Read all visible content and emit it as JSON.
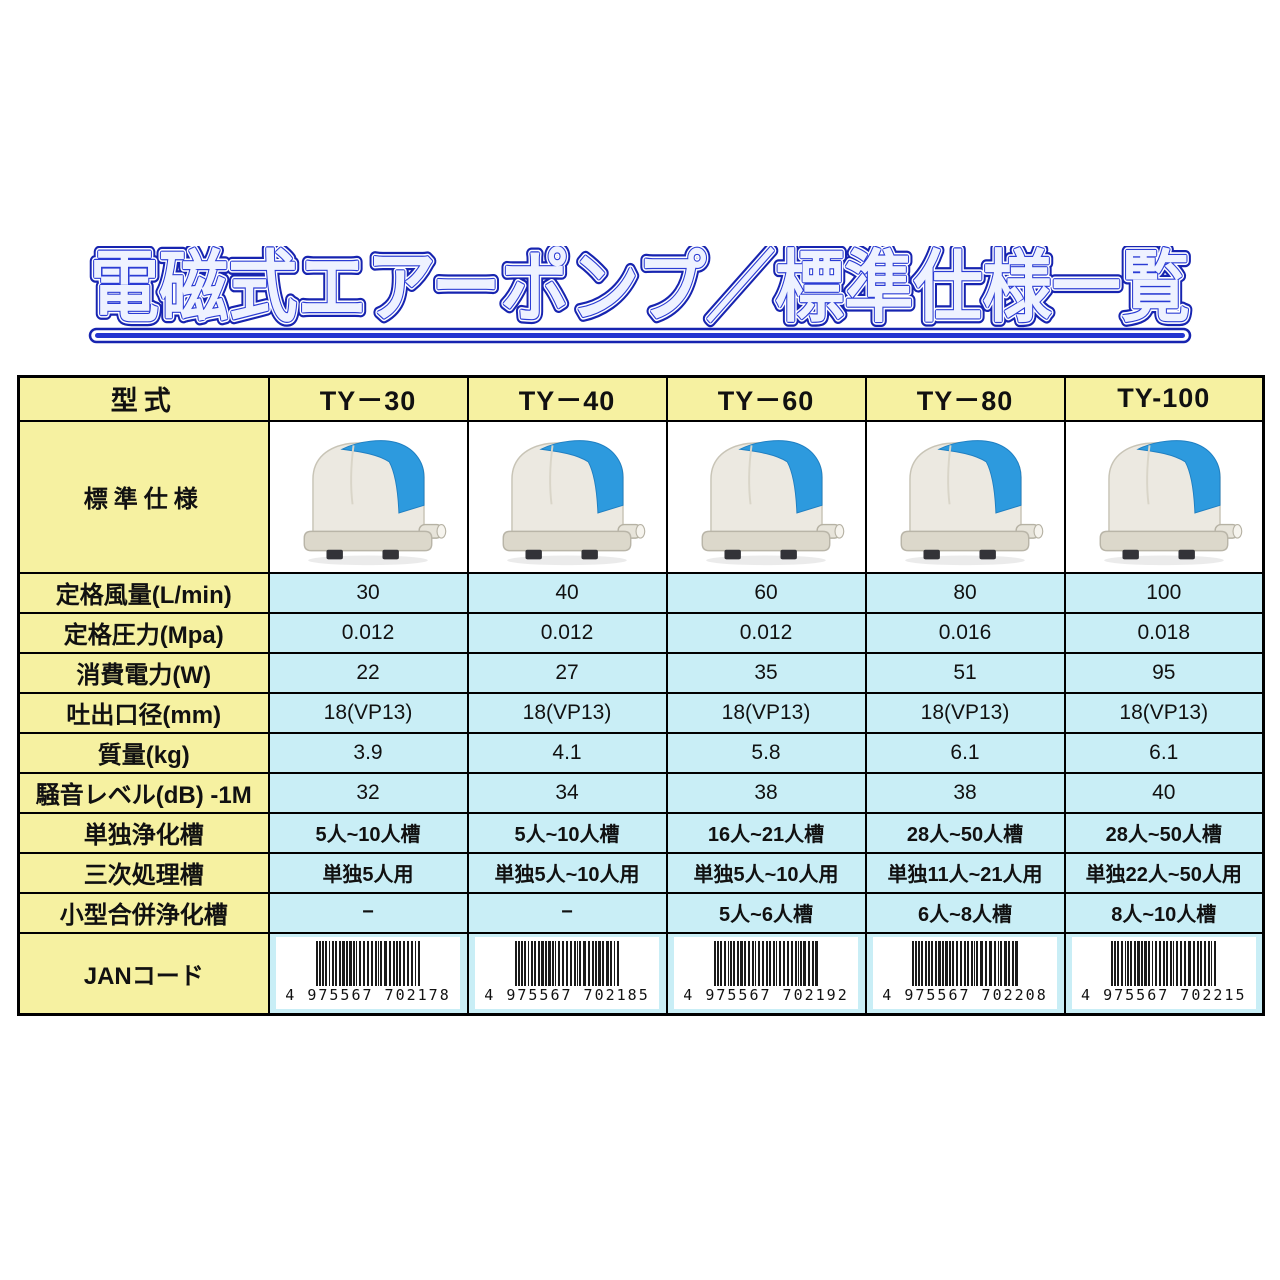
{
  "title": "電磁式エアーポンプ／標準仕様一覧",
  "table": {
    "header": {
      "model_label": "型式",
      "models": [
        "TY－30",
        "TY－40",
        "TY－60",
        "TY－80",
        "TY-100"
      ]
    },
    "image_row_label": "標準仕様",
    "spec_rows": [
      {
        "label": "定格風量(L/min)",
        "values": [
          "30",
          "40",
          "60",
          "80",
          "100"
        ]
      },
      {
        "label": "定格圧力(Mpa)",
        "values": [
          "0.012",
          "0.012",
          "0.012",
          "0.016",
          "0.018"
        ]
      },
      {
        "label": "消費電力(W)",
        "values": [
          "22",
          "27",
          "35",
          "51",
          "95"
        ]
      },
      {
        "label": "吐出口径(mm)",
        "values": [
          "18(VP13)",
          "18(VP13)",
          "18(VP13)",
          "18(VP13)",
          "18(VP13)"
        ]
      },
      {
        "label": "質量(kg)",
        "values": [
          "3.9",
          "4.1",
          "5.8",
          "6.1",
          "6.1"
        ]
      },
      {
        "label": "騒音レベル(dB) -1M",
        "values": [
          "32",
          "34",
          "38",
          "38",
          "40"
        ]
      },
      {
        "label": "単独浄化槽",
        "values": [
          "5人~10人槽",
          "5人~10人槽",
          "16人~21人槽",
          "28人~50人槽",
          "28人~50人槽"
        ]
      },
      {
        "label": "三次処理槽",
        "values": [
          "単独5人用",
          "単独5人~10人用",
          "単独5人~10人用",
          "単独11人~21人用",
          "単独22人~50人用"
        ]
      },
      {
        "label": "小型合併浄化槽",
        "values": [
          "−",
          "−",
          "5人~6人槽",
          "6人~8人槽",
          "8人~10人槽"
        ]
      }
    ],
    "jan": {
      "label": "JANコード",
      "codes": [
        "4975567702178",
        "4975567702185",
        "4975567702192",
        "4975567702208",
        "4975567702215"
      ]
    }
  },
  "colors": {
    "label_cell_yellow": "#f6f1a1",
    "value_cell_cyan": "#c9eef6",
    "table_border": "#000000",
    "title_blue": "#2335cf",
    "title_outline_navy": "#1724b0",
    "pump_blue": "#2d9ade",
    "pump_body": "#ece9e1"
  }
}
